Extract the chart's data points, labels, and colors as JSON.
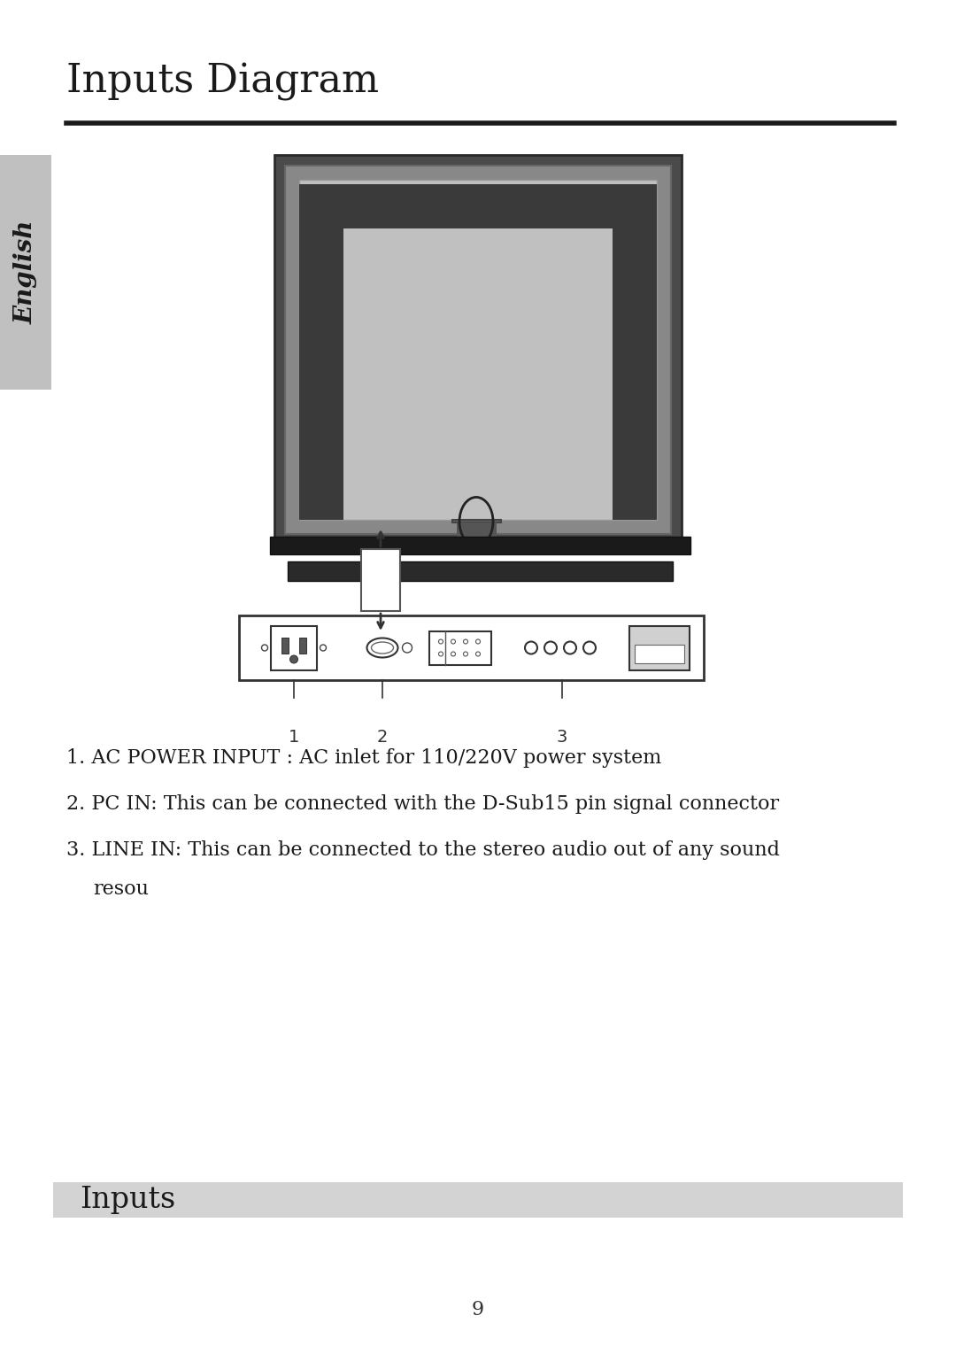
{
  "title": "Inputs Diagram",
  "section_label": "Inputs",
  "english_label": "English",
  "bg_color": "#ffffff",
  "section_bg": "#d3d3d3",
  "english_bg": "#c0c0c0",
  "line1": "1. AC POWER INPUT : AC inlet for 110/220V power system",
  "line2": "2. PC IN: This can be connected with the D-Sub15 pin signal connector",
  "line3": "3. LINE IN: This can be connected to the stereo audio out of any sound",
  "line4": "  resou",
  "page_number": "9",
  "label1": "1",
  "label2": "2",
  "label3": "3",
  "monitor_outer_color": "#555555",
  "monitor_inner_color": "#aaaaaa",
  "monitor_bg_color": "#c8c8c8",
  "stand_color": "#666666",
  "base_color": "#222222"
}
